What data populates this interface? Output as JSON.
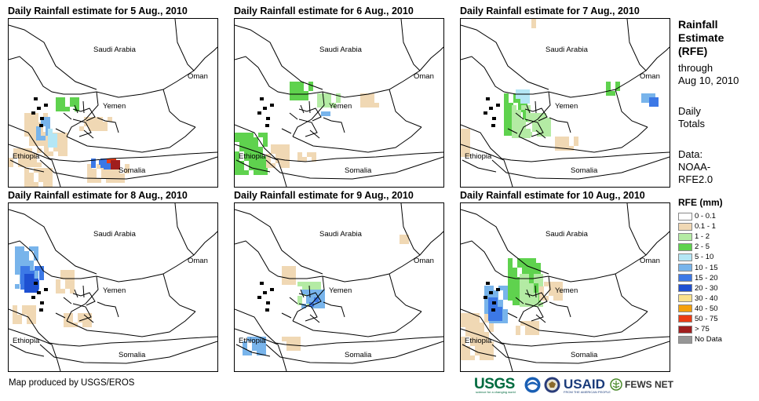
{
  "panels": [
    {
      "title": "Daily Rainfall estimate for 5 Aug., 2010",
      "labels": [
        "Saudi Arabia",
        "Oman",
        "Yemen",
        "Ethiopia",
        "Somalia"
      ]
    },
    {
      "title": "Daily Rainfall estimate for 6 Aug., 2010",
      "labels": [
        "Saudi Arabia",
        "Oman",
        "Yemen",
        "Ethiopia",
        "Somalia"
      ]
    },
    {
      "title": "Daily Rainfall estimate for 7 Aug., 2010",
      "labels": [
        "Saudi Arabia",
        "Oman",
        "Yemen",
        "Ethiopia",
        "Somalia"
      ]
    },
    {
      "title": "Daily Rainfall estimate for 8 Aug., 2010",
      "labels": [
        "Saudi Arabia",
        "Oman",
        "Yemen",
        "Ethiopia",
        "Somalia"
      ]
    },
    {
      "title": "Daily Rainfall estimate for 9 Aug., 2010",
      "labels": [
        "Saudi Arabia",
        "Oman",
        "Yemen",
        "Ethiopia",
        "Somalia"
      ]
    },
    {
      "title": "Daily Rainfall estimate for 10 Aug., 2010",
      "labels": [
        "Saudi Arabia",
        "Oman",
        "Yemen",
        "Ethiopia",
        "Somalia"
      ]
    }
  ],
  "sidebar": {
    "title_line1": "Rainfall",
    "title_line2": "Estimate",
    "title_line3": "(RFE)",
    "through": "through",
    "through_date": "Aug 10, 2010",
    "daily": "Daily",
    "totals": "Totals",
    "data_label": "Data:",
    "data_source1": "NOAA-",
    "data_source2": "RFE2.0"
  },
  "legend": {
    "title": "RFE (mm)",
    "items": [
      {
        "label": "0 - 0.1",
        "color": "#ffffff"
      },
      {
        "label": "0.1 - 1",
        "color": "#f0d8b4"
      },
      {
        "label": "1 - 2",
        "color": "#b4eba4"
      },
      {
        "label": "2 - 5",
        "color": "#5fd24e"
      },
      {
        "label": "5 - 10",
        "color": "#b4e6f5"
      },
      {
        "label": "10 - 15",
        "color": "#78b4eb"
      },
      {
        "label": "15 - 20",
        "color": "#3c78e6"
      },
      {
        "label": "20 - 30",
        "color": "#1e50d2"
      },
      {
        "label": "30 - 40",
        "color": "#fae18c"
      },
      {
        "label": "40 - 50",
        "color": "#f5a00a"
      },
      {
        "label": "50 - 75",
        "color": "#eb3c14"
      },
      {
        "label": "> 75",
        "color": "#a01e1e"
      },
      {
        "label": "No Data",
        "color": "#969696"
      }
    ]
  },
  "credit": "Map produced by USGS/EROS",
  "logos": {
    "usgs": "USGS",
    "usgs_tagline": "science for a changing world",
    "usaid": "USAID",
    "usaid_tagline": "FROM THE AMERICAN PEOPLE",
    "fews": "FEWS NET"
  }
}
